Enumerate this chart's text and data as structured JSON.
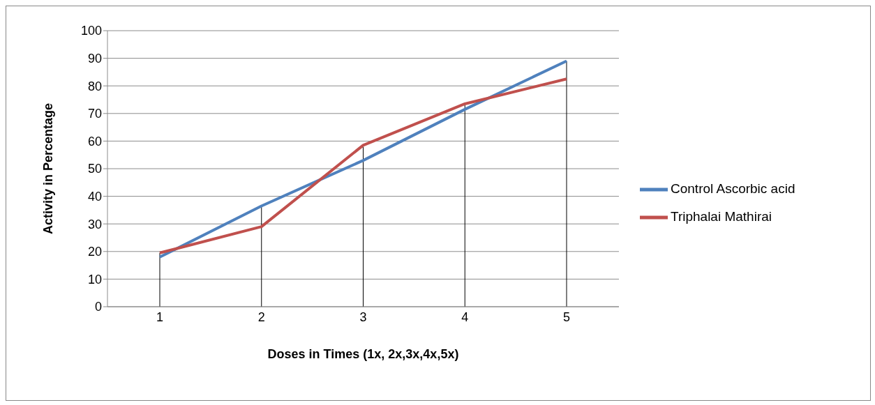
{
  "chart_data": {
    "type": "line",
    "xlabel": "Doses in Times (1x, 2x,3x,4x,5x)",
    "ylabel": "Activity in Percentage",
    "categories": [
      "1",
      "2",
      "3",
      "4",
      "5"
    ],
    "series": [
      {
        "name": "Control Ascorbic acid",
        "color": "#4f81bd",
        "values": [
          18,
          36.5,
          53,
          71.5,
          89
        ]
      },
      {
        "name": "Triphalai Mathirai",
        "color": "#c0504d",
        "values": [
          19.5,
          29,
          58.5,
          73.5,
          82.5
        ]
      }
    ],
    "ylim": [
      0,
      100
    ],
    "yticks": [
      0,
      10,
      20,
      30,
      40,
      50,
      60,
      70,
      80,
      90,
      100
    ],
    "grid": true,
    "legend": "right",
    "marker": "none",
    "line_style": "solid"
  }
}
